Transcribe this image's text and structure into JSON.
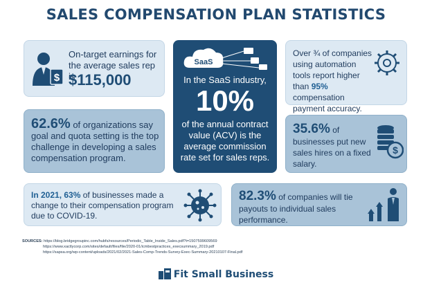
{
  "title": "SALES COMPENSATION PLAN STATISTICS",
  "card1": {
    "text": "On-target earnings for the average sales rep is",
    "value": "$115,000",
    "icon": "businessman-dollar-icon"
  },
  "card2": {
    "stat": "62.6%",
    "text_a": " of organizations say goal and quota setting is the top challenge in developing a sales compensation program."
  },
  "card3": {
    "cloud_label": "SaaS",
    "lead": "In the SaaS industry,",
    "value": "10%",
    "text": "of the annual contract value (ACV) is the average commission rate set for sales reps.",
    "icon": "cloud-network-icon"
  },
  "card4": {
    "text_a": "Over ¾ of companies using automation tools report higher than ",
    "stat": "95%",
    "text_b": " compensation payment accuracy.",
    "icon": "gear-refresh-icon"
  },
  "card5": {
    "stat": "35.6%",
    "text_a": " of businesses put new sales hires on a fixed salary.",
    "icon": "coins-dollar-icon"
  },
  "card6": {
    "stat": "In 2021, 63%",
    "text_a": " of businesses made a change to their compensation program due to COVID-19.",
    "icon": "virus-icon"
  },
  "card7": {
    "stat": "82.3%",
    "text_a": " of companies will tie payouts to individual sales performance.",
    "icon": "growth-person-icon"
  },
  "sources": {
    "label": "SOURCES:",
    "line1": "https://blog.bridgegroupinc.com/hubfs/resources/Periodic_Table_Inside_Sales.pdf?t=1507599609569",
    "line2": "https://www.xactlycorp.com/sites/default/files/file/2020-01/icmbestpractices_execsummary_2019.pdf",
    "line3": "https://sapsa.org/wp-content/uploads/2021/02/2021-Sales-Comp-Trends-Survey-Exec-Summary-20210107-Final.pdf"
  },
  "brand": {
    "name": "Fit Small Business",
    "icon": "fsb-logo-icon"
  },
  "colors": {
    "dark": "#1f4d75",
    "light": "#dde9f3",
    "mid": "#a9c3d8",
    "accent": "#1f5f93"
  }
}
